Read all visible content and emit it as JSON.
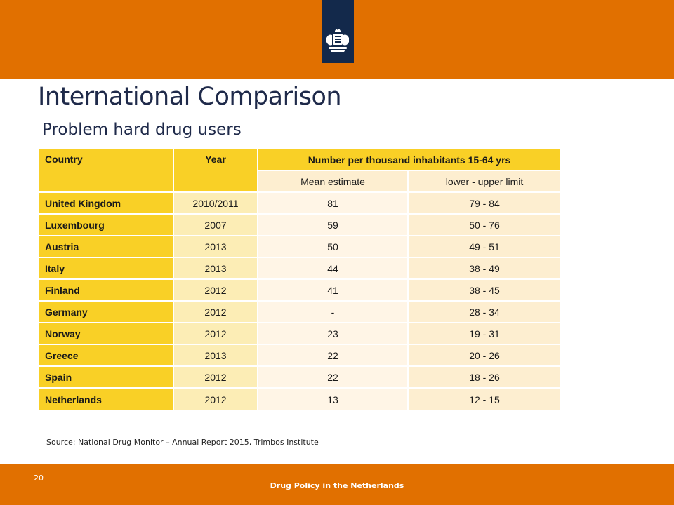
{
  "slide": {
    "title": "International Comparison",
    "subtitle": "Problem hard drug users",
    "source": "Source: National Drug Monitor – Annual Report 2015, Trimbos Institute",
    "page_number": "20",
    "footer": "Drug Policy in the Netherlands"
  },
  "colors": {
    "header_orange": "#e17000",
    "logo_navy": "#13294b",
    "table_yellow": "#f9d026"
  },
  "table": {
    "headers": {
      "country": "Country",
      "year": "Year",
      "group": "Number per thousand inhabitants 15-64 yrs",
      "mean": "Mean estimate",
      "range": "lower  - upper limit"
    },
    "rows": [
      {
        "country": "United Kingdom",
        "year": "2010/2011",
        "mean": "81",
        "range": "79 - 84"
      },
      {
        "country": "Luxembourg",
        "year": "2007",
        "mean": "59",
        "range": "50 - 76"
      },
      {
        "country": "Austria",
        "year": "2013",
        "mean": "50",
        "range": "49 - 51"
      },
      {
        "country": "Italy",
        "year": "2013",
        "mean": "44",
        "range": "38 - 49"
      },
      {
        "country": "Finland",
        "year": "2012",
        "mean": "41",
        "range": "38 - 45"
      },
      {
        "country": "Germany",
        "year": "2012",
        "mean": "-",
        "range": "28 - 34"
      },
      {
        "country": "Norway",
        "year": "2012",
        "mean": "23",
        "range": "19 - 31"
      },
      {
        "country": "Greece",
        "year": "2013",
        "mean": "22",
        "range": "20 - 26"
      },
      {
        "country": "Spain",
        "year": "2012",
        "mean": "22",
        "range": "18 - 26"
      },
      {
        "country": "Netherlands",
        "year": "2012",
        "mean": "13",
        "range": "12 - 15"
      }
    ]
  }
}
